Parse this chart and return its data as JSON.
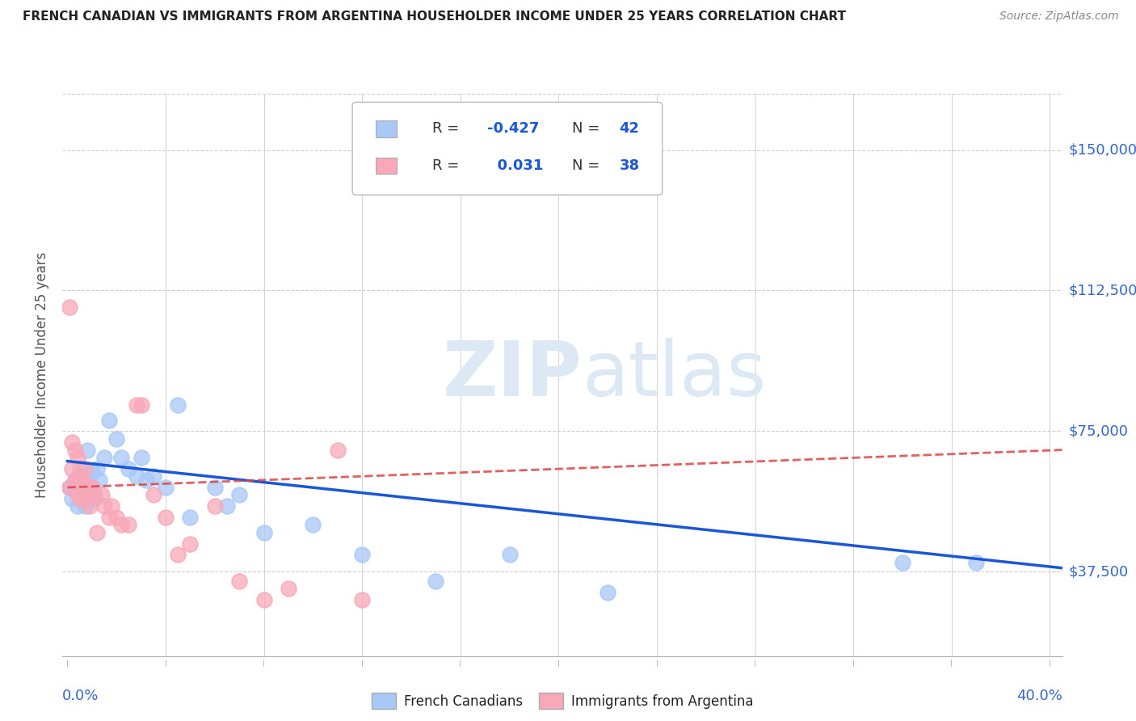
{
  "title": "FRENCH CANADIAN VS IMMIGRANTS FROM ARGENTINA HOUSEHOLDER INCOME UNDER 25 YEARS CORRELATION CHART",
  "source": "Source: ZipAtlas.com",
  "ylabel": "Householder Income Under 25 years",
  "ytick_labels": [
    "$37,500",
    "$75,000",
    "$112,500",
    "$150,000"
  ],
  "ytick_vals": [
    37500,
    75000,
    112500,
    150000
  ],
  "ymin": 15000,
  "ymax": 165000,
  "xmin": -0.002,
  "xmax": 0.405,
  "blue_color": "#a8c8f8",
  "pink_color": "#f8a8b8",
  "blue_line_color": "#1a56db",
  "pink_line_color": "#d44",
  "watermark_zip": "ZIP",
  "watermark_atlas": "atlas",
  "legend_label1": "French Canadians",
  "legend_label2": "Immigrants from Argentina",
  "blue_scatter_x": [
    0.001,
    0.002,
    0.003,
    0.004,
    0.004,
    0.005,
    0.005,
    0.006,
    0.006,
    0.007,
    0.007,
    0.008,
    0.008,
    0.009,
    0.01,
    0.01,
    0.011,
    0.012,
    0.013,
    0.015,
    0.017,
    0.02,
    0.022,
    0.025,
    0.028,
    0.03,
    0.032,
    0.035,
    0.04,
    0.045,
    0.05,
    0.06,
    0.065,
    0.07,
    0.08,
    0.1,
    0.12,
    0.15,
    0.18,
    0.22,
    0.34,
    0.37
  ],
  "blue_scatter_y": [
    60000,
    57000,
    62000,
    60000,
    55000,
    65000,
    58000,
    63000,
    57000,
    62000,
    55000,
    60000,
    70000,
    58000,
    64000,
    60000,
    57000,
    65000,
    62000,
    68000,
    78000,
    73000,
    68000,
    65000,
    63000,
    68000,
    62000,
    63000,
    60000,
    82000,
    52000,
    60000,
    55000,
    58000,
    48000,
    50000,
    42000,
    35000,
    42000,
    32000,
    40000,
    40000
  ],
  "pink_scatter_x": [
    0.001,
    0.001,
    0.002,
    0.002,
    0.003,
    0.003,
    0.004,
    0.004,
    0.005,
    0.005,
    0.006,
    0.006,
    0.007,
    0.007,
    0.008,
    0.009,
    0.01,
    0.011,
    0.012,
    0.014,
    0.015,
    0.017,
    0.018,
    0.02,
    0.022,
    0.025,
    0.028,
    0.03,
    0.035,
    0.04,
    0.045,
    0.05,
    0.06,
    0.07,
    0.08,
    0.09,
    0.11,
    0.12
  ],
  "pink_scatter_y": [
    108000,
    60000,
    72000,
    65000,
    70000,
    62000,
    68000,
    58000,
    63000,
    57000,
    62000,
    58000,
    65000,
    57000,
    60000,
    55000,
    60000,
    58000,
    48000,
    58000,
    55000,
    52000,
    55000,
    52000,
    50000,
    50000,
    82000,
    82000,
    58000,
    52000,
    42000,
    45000,
    55000,
    35000,
    30000,
    33000,
    70000,
    30000
  ],
  "blue_trend_x": [
    0.0,
    0.405
  ],
  "blue_trend_y": [
    67000,
    38500
  ],
  "pink_trend_x": [
    0.0,
    0.405
  ],
  "pink_trend_y": [
    60000,
    70000
  ],
  "background_color": "#ffffff",
  "grid_color": "#cccccc"
}
